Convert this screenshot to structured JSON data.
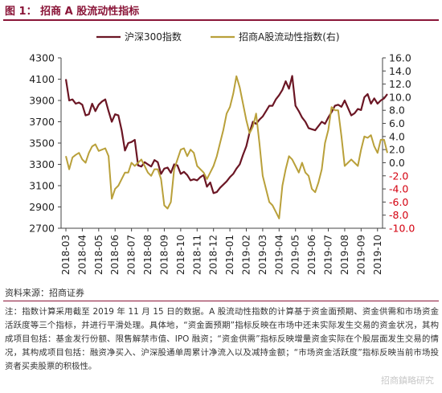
{
  "header": {
    "title": "图 1： 招商 A 股流动性指标"
  },
  "footer": {
    "source": "资料来源：招商证券",
    "note": "注：指数计算采用截至 2019 年 11 月 15 日的数据。A 股流动性指数的计算基于资金面预期、资金供需和市场资金活跃度等三个指标，并进行平滑处理。具体地，“资金面预期”指标反映在市场中还未实际发生交易的资金状况，其构成项目包括：基金发行份额、限售解禁市值、IPO 融资；“资金供需”指标反映增量资金实际在个股层面发生交易的情况，其构成项目包括：融资净买入、沪深股通单周累计净流入以及减持金额；“市场资金活跃度”指标反映当前市场投资者买卖股票的积极性。",
    "watermark": "招商鎮略研究"
  },
  "colors": {
    "hs300": "#6b1624",
    "liquidity": "#b9a03a",
    "negative_tick": "#d4000f",
    "title": "#8a1538"
  },
  "chart_data": {
    "type": "line",
    "legend_position": "top",
    "x_labels": [
      "2018-03",
      "2018-04",
      "2018-05",
      "2018-06",
      "2018-07",
      "2018-08",
      "2018-09",
      "2018-10",
      "2018-11",
      "2018-12",
      "2019-01",
      "2019-02",
      "2019-03",
      "2019-04",
      "2019-05",
      "2019-06",
      "2019-07",
      "2019-08",
      "2019-09",
      "2019-10"
    ],
    "y_left": {
      "min": 2700,
      "max": 4300,
      "ticks": [
        2700,
        2900,
        3100,
        3300,
        3500,
        3700,
        3900,
        4100,
        4300
      ]
    },
    "y_right": {
      "min": -10,
      "max": 16,
      "ticks": [
        -10.0,
        -8.0,
        -6.0,
        -4.0,
        -2.0,
        0.0,
        2.0,
        4.0,
        6.0,
        8.0,
        10.0,
        12.0,
        14.0,
        16.0
      ]
    },
    "series": [
      {
        "name": "沪深300指数",
        "axis": "left",
        "color": "#6b1624",
        "x": [
          0,
          0.2,
          0.4,
          0.6,
          0.8,
          1.0,
          1.2,
          1.4,
          1.6,
          1.8,
          2.0,
          2.2,
          2.4,
          2.6,
          2.8,
          3.0,
          3.2,
          3.4,
          3.6,
          3.8,
          4.0,
          4.2,
          4.4,
          4.6,
          4.8,
          5.0,
          5.2,
          5.4,
          5.6,
          5.8,
          6.0,
          6.2,
          6.4,
          6.6,
          6.8,
          7.0,
          7.2,
          7.4,
          7.6,
          7.8,
          8.0,
          8.2,
          8.4,
          8.6,
          8.8,
          9.0,
          9.2,
          9.4,
          9.6,
          9.8,
          10.0,
          10.2,
          10.4,
          10.6,
          10.8,
          11.0,
          11.2,
          11.4,
          11.6,
          11.8,
          12.0,
          12.2,
          12.4,
          12.6,
          12.8,
          13.0,
          13.2,
          13.4,
          13.6,
          13.8,
          14.0,
          14.2,
          14.4,
          14.6,
          14.8,
          15.0,
          15.2,
          15.4,
          15.6,
          15.8,
          16.0,
          16.2,
          16.4,
          16.6,
          16.8,
          17.0,
          17.2,
          17.4,
          17.6,
          17.8,
          18.0,
          18.2,
          18.4,
          18.6,
          18.8,
          19.0,
          19.2,
          19.4,
          19.6
        ],
        "values": [
          4100,
          3900,
          3910,
          3870,
          3880,
          3860,
          3760,
          3770,
          3870,
          3800,
          3860,
          3890,
          3910,
          3800,
          3700,
          3770,
          3760,
          3620,
          3430,
          3500,
          3510,
          3530,
          3290,
          3280,
          3320,
          3300,
          3280,
          3340,
          3320,
          3210,
          3260,
          3270,
          3220,
          3300,
          3290,
          3210,
          3230,
          3200,
          3150,
          3160,
          3150,
          3180,
          3200,
          3090,
          3130,
          3030,
          3040,
          3080,
          3110,
          3140,
          3180,
          3210,
          3260,
          3300,
          3390,
          3470,
          3600,
          3700,
          3680,
          3720,
          3750,
          3800,
          3850,
          3850,
          3910,
          3950,
          4000,
          4080,
          4010,
          4130,
          3850,
          3800,
          3740,
          3700,
          3640,
          3630,
          3620,
          3660,
          3700,
          3680,
          3740,
          3790,
          3850,
          3860,
          3840,
          3900,
          3830,
          3760,
          3780,
          3820,
          3810,
          3930,
          3960,
          3870,
          3920,
          3870,
          3900,
          3920,
          3960
        ],
        "note": "monthly samples; final point 3950 at 2019-11"
      },
      {
        "name": "招商A股流动性指数(右)",
        "axis": "right",
        "color": "#b9a03a",
        "x": [
          0,
          0.2,
          0.4,
          0.6,
          0.8,
          1.0,
          1.2,
          1.4,
          1.6,
          1.8,
          2.0,
          2.2,
          2.4,
          2.6,
          2.8,
          3.0,
          3.2,
          3.4,
          3.6,
          3.8,
          4.0,
          4.2,
          4.4,
          4.6,
          4.8,
          5.0,
          5.2,
          5.4,
          5.6,
          5.8,
          6.0,
          6.2,
          6.4,
          6.6,
          6.8,
          7.0,
          7.2,
          7.4,
          7.6,
          7.8,
          8.0,
          8.2,
          8.4,
          8.6,
          8.8,
          9.0,
          9.2,
          9.4,
          9.6,
          9.8,
          10.0,
          10.2,
          10.4,
          10.6,
          10.8,
          11.0,
          11.2,
          11.4,
          11.6,
          11.8,
          12.0,
          12.2,
          12.4,
          12.6,
          12.8,
          13.0,
          13.2,
          13.4,
          13.6,
          13.8,
          14.0,
          14.2,
          14.4,
          14.6,
          14.8,
          15.0,
          15.2,
          15.4,
          15.6,
          15.8,
          16.0,
          16.2,
          16.4,
          16.6,
          16.8,
          17.0,
          17.2,
          17.4,
          17.6,
          17.8,
          18.0,
          18.2,
          18.4,
          18.6,
          18.8,
          19.0,
          19.2,
          19.4,
          19.6
        ],
        "values": [
          1.0,
          -1.0,
          0.8,
          1.2,
          1.5,
          0.5,
          0.0,
          1.5,
          2.5,
          2.8,
          1.8,
          2.0,
          2.2,
          1.0,
          -5.5,
          -4.0,
          -3.5,
          -2.5,
          -1.5,
          -1.5,
          0.0,
          -0.5,
          0.0,
          0.5,
          -0.5,
          -1.5,
          -2.0,
          -1.0,
          -1.0,
          -2.5,
          -6.5,
          -7.0,
          -6.0,
          -1.0,
          0.5,
          2.0,
          2.2,
          1.0,
          2.0,
          1.5,
          -0.5,
          -1.0,
          -1.5,
          -2.5,
          -1.5,
          -0.5,
          1.0,
          3.0,
          5.0,
          7.5,
          8.5,
          10.5,
          13.2,
          11.5,
          9.0,
          6.5,
          4.5,
          5.5,
          7.5,
          3.0,
          -2.0,
          -4.0,
          -6.0,
          -6.5,
          -7.5,
          -8.5,
          -3.5,
          -1.0,
          1.0,
          0.5,
          -0.5,
          -1.5,
          0.0,
          -1.5,
          -2.0,
          -4.0,
          -4.5,
          -3.0,
          -1.0,
          3.0,
          5.0,
          8.5,
          8.0,
          8.0,
          4.0,
          -0.5,
          0.0,
          0.5,
          0.0,
          -0.5,
          2.0,
          4.0,
          3.8,
          4.2,
          2.5,
          1.5,
          3.5,
          3.5,
          1.5
        ]
      }
    ]
  }
}
